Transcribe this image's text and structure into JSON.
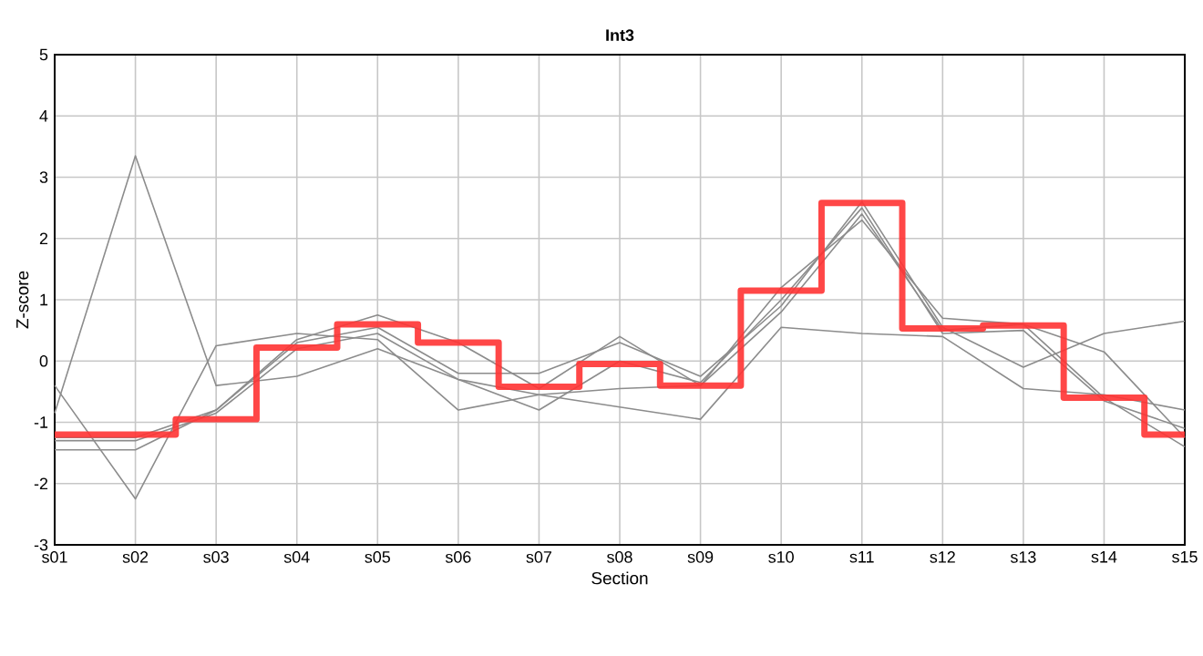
{
  "chart_data": {
    "type": "line",
    "title": "Int3",
    "xlabel": "Section",
    "ylabel": "Z-score",
    "categories": [
      "s01",
      "s02",
      "s03",
      "s04",
      "s05",
      "s06",
      "s07",
      "s08",
      "s09",
      "s10",
      "s11",
      "s12",
      "s13",
      "s14",
      "s15"
    ],
    "ylim": [
      -3,
      5
    ],
    "yticks": [
      -3,
      -2,
      -1,
      0,
      1,
      2,
      3,
      4,
      5
    ],
    "grid": true,
    "marker": "none",
    "line_style": "solid",
    "series": [
      {
        "color": "#8c8c8c",
        "values": [
          -0.85,
          3.35,
          -0.4,
          -0.25,
          0.2,
          -0.3,
          -0.55,
          -0.75,
          -0.95,
          0.55,
          0.45,
          0.4,
          -0.45,
          -0.55,
          -0.8
        ]
      },
      {
        "color": "#8c8c8c",
        "values": [
          -0.4,
          -2.25,
          0.25,
          0.45,
          0.35,
          -0.8,
          -0.55,
          -0.45,
          -0.4,
          1.2,
          2.3,
          0.7,
          0.6,
          -0.6,
          -1.4
        ]
      },
      {
        "color": "#8c8c8c",
        "values": [
          -1.45,
          -1.45,
          -0.8,
          0.3,
          0.55,
          -0.2,
          -0.2,
          0.3,
          -0.25,
          0.9,
          2.6,
          0.55,
          -0.1,
          0.45,
          0.65
        ]
      },
      {
        "color": "#8c8c8c",
        "values": [
          -1.25,
          -1.25,
          -0.8,
          0.35,
          0.75,
          0.3,
          -0.45,
          0.4,
          -0.4,
          0.8,
          2.4,
          0.5,
          0.6,
          0.15,
          -1.25
        ]
      },
      {
        "color": "#8c8c8c",
        "values": [
          -1.3,
          -1.3,
          -0.85,
          0.2,
          0.45,
          -0.3,
          -0.8,
          0.0,
          -0.35,
          1.0,
          2.5,
          0.45,
          0.5,
          -0.65,
          -1.1
        ]
      },
      {
        "type": "step",
        "color": "#ff3333",
        "values": [
          -1.2,
          -1.2,
          -0.95,
          0.22,
          0.6,
          0.3,
          -0.42,
          -0.05,
          -0.4,
          1.15,
          2.58,
          0.53,
          0.58,
          -0.6,
          -1.2
        ]
      }
    ]
  }
}
